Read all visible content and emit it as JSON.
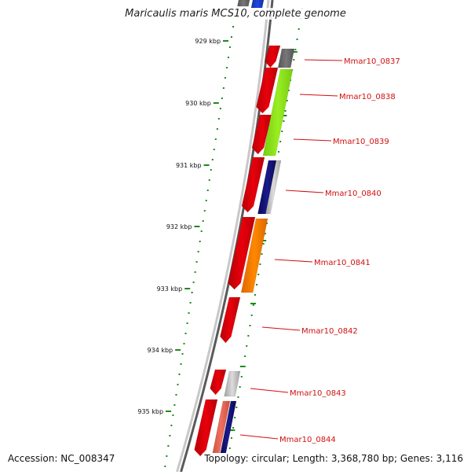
{
  "title": "Maricaulis maris MCS10, complete genome",
  "footer": {
    "accession": "Accession: NC_008347",
    "topology": "Topology: circular; Length: 3,368,780 bp; Genes: 3,116"
  },
  "colors": {
    "backbone": "#8a8a8a",
    "tick": "#1e8a1e",
    "gene_forward": "#e8000b",
    "label": "#d01010",
    "feature_gray": "#777777",
    "feature_green": "#99ee22",
    "feature_navy": "#1a1a8c",
    "feature_orange": "#ff8800",
    "feature_lightgray": "#c0c0c0",
    "feature_salmon": "#f07060",
    "feature_blue": "#2244dd"
  },
  "scale": {
    "ticks": [
      {
        "kbp": 929,
        "label": "929 kbp"
      },
      {
        "kbp": 930,
        "label": "930 kbp"
      },
      {
        "kbp": 931,
        "label": "931 kbp"
      },
      {
        "kbp": 932,
        "label": "932 kbp"
      },
      {
        "kbp": 933,
        "label": "933 kbp"
      },
      {
        "kbp": 934,
        "label": "934 kbp"
      },
      {
        "kbp": 935,
        "label": "935 kbp"
      }
    ]
  },
  "genes": [
    {
      "label": "Mmar10_0837",
      "strand": "+"
    },
    {
      "label": "Mmar10_0838",
      "strand": "-"
    },
    {
      "label": "Mmar10_0839",
      "strand": "-"
    },
    {
      "label": "Mmar10_0840",
      "strand": "-"
    },
    {
      "label": "Mmar10_0841",
      "strand": "-"
    },
    {
      "label": "Mmar10_0842",
      "strand": "-"
    },
    {
      "label": "Mmar10_0843",
      "strand": "-"
    },
    {
      "label": "Mmar10_0844",
      "strand": "-"
    }
  ]
}
